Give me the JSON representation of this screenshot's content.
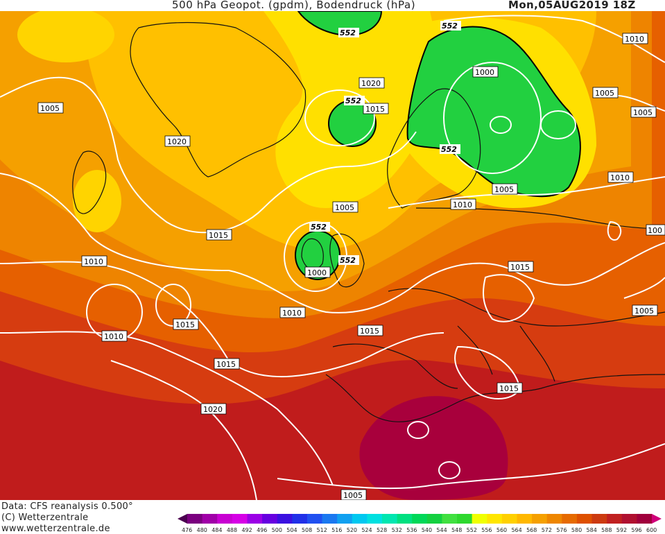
{
  "header": {
    "title": "500 hPa Geopot. (gpdm), Bodendruck (hPa)",
    "datetime": "Mon,05AUG2019 18Z"
  },
  "footer": {
    "data_source": "Data: CFS reanalysis 0.500°",
    "copyright": "(C) Wetterzentrale",
    "url": "www.wetterzentrale.de"
  },
  "colorbar": {
    "labels": [
      "476",
      "480",
      "484",
      "488",
      "492",
      "496",
      "500",
      "504",
      "508",
      "512",
      "516",
      "520",
      "524",
      "528",
      "532",
      "536",
      "540",
      "544",
      "548",
      "552",
      "556",
      "560",
      "564",
      "568",
      "572",
      "576",
      "580",
      "584",
      "588",
      "592",
      "596",
      "600"
    ],
    "colors": [
      "#4b0050",
      "#7a007f",
      "#a000a8",
      "#c800d2",
      "#d600e6",
      "#9b00e6",
      "#6600e0",
      "#3a10e0",
      "#2030e8",
      "#2050f0",
      "#1a78f0",
      "#10a0f0",
      "#00c8f0",
      "#00e0e0",
      "#00e6b0",
      "#00e080",
      "#00d858",
      "#14d040",
      "#40e040",
      "#2ed82e",
      "#f0ff00",
      "#ffe600",
      "#ffd000",
      "#ffb800",
      "#f5a000",
      "#ee8600",
      "#e66a00",
      "#de5000",
      "#cc3a10",
      "#c02020",
      "#b01030",
      "#a0003c",
      "#d0007a"
    ]
  },
  "isobars": [
    {
      "label": "1005"
    },
    {
      "label": "1020"
    },
    {
      "label": "1015"
    },
    {
      "label": "1010"
    },
    {
      "label": "1010"
    },
    {
      "label": "1015"
    },
    {
      "label": "1010"
    },
    {
      "label": "1015"
    },
    {
      "label": "1020"
    },
    {
      "label": "1005"
    },
    {
      "label": "1000"
    },
    {
      "label": "1010"
    },
    {
      "label": "1015"
    },
    {
      "label": "1015"
    },
    {
      "label": "1020"
    },
    {
      "label": "1015"
    },
    {
      "label": "1000"
    },
    {
      "label": "1005"
    },
    {
      "label": "1010"
    },
    {
      "label": "1005"
    },
    {
      "label": "1010"
    },
    {
      "label": "1005"
    },
    {
      "label": "1010"
    },
    {
      "label": "1015"
    },
    {
      "label": "1005"
    },
    {
      "label": "1015"
    },
    {
      "label": "1005"
    },
    {
      "label": "100"
    }
  ],
  "geopotential_labels": [
    {
      "label": "552"
    },
    {
      "label": "552"
    },
    {
      "label": "552"
    },
    {
      "label": "552"
    },
    {
      "label": "552"
    },
    {
      "label": "552"
    }
  ]
}
